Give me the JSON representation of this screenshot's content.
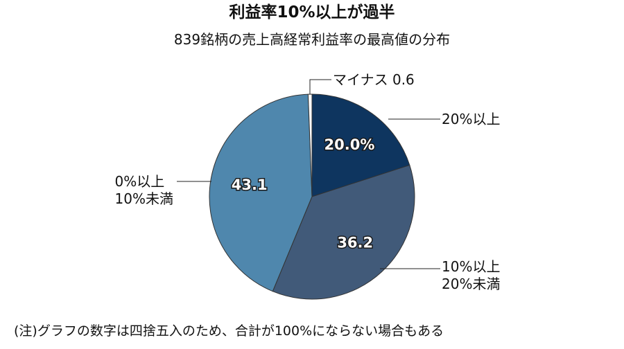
{
  "chart_data": {
    "type": "pie",
    "title": "利益率10%以上が過半",
    "subtitle": "839銘柄の売上高経常利益率の最高値の分布",
    "categories": [
      "20%以上",
      "10%以上\n20%未満",
      "0%以上\n10%未満",
      "マイナス"
    ],
    "values": [
      20.0,
      36.2,
      43.1,
      0.6
    ],
    "value_labels": [
      "20.0%",
      "36.2",
      "43.1",
      "0.6"
    ],
    "colors": [
      "#0e355f",
      "#415a79",
      "#4f87ad",
      "#ffffff"
    ],
    "note": "(注)グラフの数字は四捨五入のため、合計が100%にならない場合もある"
  }
}
